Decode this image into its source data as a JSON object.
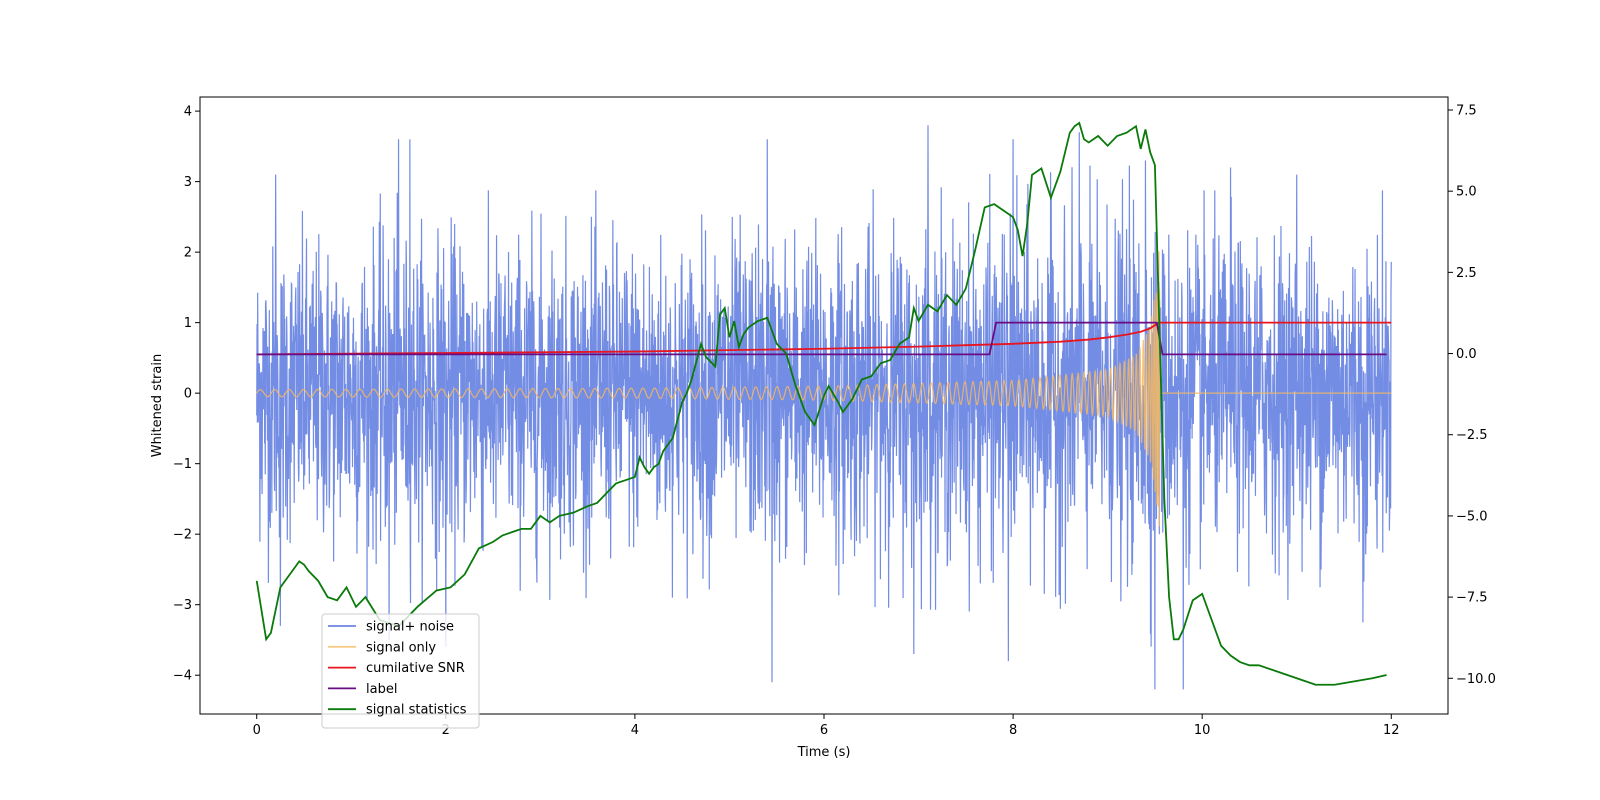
{
  "chart_data": {
    "type": "line",
    "title": "",
    "xlabel": "Time (s)",
    "ylabel": "Whitened strain",
    "y2label": "",
    "xlim": [
      -0.6,
      12.6
    ],
    "ylim": [
      -4.55,
      4.2
    ],
    "y2lim": [
      -11.1,
      7.9
    ],
    "x_ticks": [
      0,
      2,
      4,
      6,
      8,
      10,
      12
    ],
    "x_tick_labels": [
      "0",
      "2",
      "4",
      "6",
      "8",
      "10",
      "12"
    ],
    "y_ticks": [
      -4,
      -3,
      -2,
      -1,
      0,
      1,
      2,
      3,
      4
    ],
    "y_tick_labels": [
      "−4",
      "−3",
      "−2",
      "−1",
      "0",
      "1",
      "2",
      "3",
      "4"
    ],
    "y2_ticks": [
      -10,
      -7.5,
      -5,
      -2.5,
      0,
      2.5,
      5,
      7.5
    ],
    "y2_tick_labels": [
      "−10.0",
      "−7.5",
      "−5.0",
      "−2.5",
      "0.0",
      "2.5",
      "5.0",
      "7.5"
    ],
    "legend_position": "lower-left",
    "series": [
      {
        "name": "signal+ noise",
        "color": "#6b86e3",
        "axis": "left",
        "style": "noise",
        "x_range": [
          0,
          12
        ],
        "envelope_x": [
          0,
          2,
          4,
          6,
          8,
          9,
          9.5,
          9.55,
          9.6,
          12
        ],
        "envelope_upper": [
          2.2,
          2.3,
          2.3,
          2.4,
          2.5,
          2.6,
          2.8,
          2.4,
          2.3,
          2.3
        ],
        "envelope_lower": [
          -2.3,
          -2.4,
          -2.3,
          -2.4,
          -2.5,
          -2.6,
          -2.9,
          -2.5,
          -2.4,
          -2.3
        ],
        "peaks_high": [
          [
            0.2,
            3.1
          ],
          [
            1.5,
            3.6
          ],
          [
            1.62,
            3.6
          ],
          [
            5.4,
            3.6
          ],
          [
            7.1,
            3.8
          ],
          [
            8.7,
            3.7
          ],
          [
            8.0,
            3.6
          ],
          [
            9.4,
            3.3
          ],
          [
            10.3,
            3.2
          ],
          [
            11.0,
            3.1
          ]
        ],
        "peaks_low": [
          [
            0.25,
            -3.3
          ],
          [
            1.4,
            -3.5
          ],
          [
            2.0,
            -3.6
          ],
          [
            5.45,
            -4.1
          ],
          [
            6.95,
            -3.7
          ],
          [
            7.95,
            -3.8
          ],
          [
            9.5,
            -4.2
          ],
          [
            9.8,
            -4.2
          ],
          [
            11.7,
            -3.25
          ]
        ]
      },
      {
        "name": "signal only",
        "color": "#f5b961",
        "axis": "left",
        "style": "chirp",
        "x_range": [
          0,
          12
        ],
        "merger_time": 9.55,
        "amp_x": [
          0,
          4,
          6,
          8,
          9,
          9.3,
          9.45,
          9.52,
          9.55
        ],
        "amp_values": [
          0.05,
          0.07,
          0.1,
          0.18,
          0.33,
          0.55,
          0.95,
          1.6,
          2.2
        ],
        "post_merger_value": 0.0
      },
      {
        "name": "cumilative SNR",
        "color": "#e8141e",
        "axis": "left",
        "x": [
          0,
          2,
          4,
          5,
          6,
          7,
          7.5,
          8,
          8.5,
          8.8,
          9.0,
          9.2,
          9.35,
          9.45,
          9.52,
          9.55,
          9.57,
          12
        ],
        "values": [
          0.55,
          0.57,
          0.59,
          0.61,
          0.63,
          0.66,
          0.68,
          0.7,
          0.73,
          0.76,
          0.79,
          0.83,
          0.87,
          0.92,
          0.98,
          1.0,
          1.0,
          1.0
        ]
      },
      {
        "name": "label",
        "color": "#6a0d85",
        "axis": "left",
        "x": [
          0,
          7.75,
          7.82,
          9.52,
          9.58,
          11.95
        ],
        "values": [
          0.55,
          0.55,
          1.0,
          1.0,
          0.55,
          0.55
        ]
      },
      {
        "name": "signal statistics",
        "color": "#0a7a0a",
        "axis": "right",
        "x": [
          0,
          0.1,
          0.15,
          0.25,
          0.35,
          0.45,
          0.5,
          0.55,
          0.65,
          0.75,
          0.85,
          0.95,
          1.05,
          1.15,
          1.3,
          1.5,
          1.7,
          1.9,
          2.05,
          2.2,
          2.35,
          2.5,
          2.6,
          2.7,
          2.8,
          2.9,
          3.0,
          3.1,
          3.2,
          3.35,
          3.5,
          3.6,
          3.7,
          3.8,
          3.9,
          4.0,
          4.05,
          4.1,
          4.15,
          4.2,
          4.25,
          4.3,
          4.35,
          4.4,
          4.5,
          4.55,
          4.6,
          4.7,
          4.75,
          4.85,
          4.9,
          4.95,
          5.0,
          5.05,
          5.1,
          5.15,
          5.2,
          5.3,
          5.4,
          5.5,
          5.6,
          5.7,
          5.8,
          5.9,
          6.0,
          6.05,
          6.15,
          6.2,
          6.3,
          6.4,
          6.5,
          6.6,
          6.7,
          6.8,
          6.9,
          6.95,
          7.0,
          7.1,
          7.2,
          7.3,
          7.4,
          7.5,
          7.6,
          7.7,
          7.8,
          7.9,
          8.0,
          8.05,
          8.1,
          8.15,
          8.2,
          8.3,
          8.4,
          8.5,
          8.55,
          8.6,
          8.65,
          8.7,
          8.75,
          8.8,
          8.9,
          9.0,
          9.1,
          9.2,
          9.3,
          9.35,
          9.4,
          9.45,
          9.5,
          9.55,
          9.6,
          9.65,
          9.7,
          9.75,
          9.8,
          9.9,
          10.0,
          10.1,
          10.2,
          10.3,
          10.4,
          10.5,
          10.6,
          10.8,
          11.0,
          11.2,
          11.4,
          11.6,
          11.8,
          11.95
        ],
        "values": [
          -7.0,
          -8.8,
          -8.6,
          -7.2,
          -6.8,
          -6.4,
          -6.5,
          -6.7,
          -7.0,
          -7.5,
          -7.6,
          -7.2,
          -7.8,
          -7.5,
          -8.2,
          -8.4,
          -7.8,
          -7.3,
          -7.2,
          -6.8,
          -6.0,
          -5.8,
          -5.6,
          -5.5,
          -5.4,
          -5.4,
          -5.0,
          -5.2,
          -5.0,
          -4.9,
          -4.7,
          -4.6,
          -4.3,
          -4.0,
          -3.9,
          -3.8,
          -3.2,
          -3.5,
          -3.7,
          -3.5,
          -3.4,
          -3.0,
          -2.8,
          -2.6,
          -1.5,
          -1.2,
          -0.8,
          0.3,
          -0.1,
          -0.4,
          1.2,
          1.4,
          0.5,
          1.0,
          0.2,
          0.6,
          0.8,
          1.0,
          1.1,
          0.3,
          0.0,
          -1.0,
          -1.8,
          -2.2,
          -1.3,
          -1.0,
          -1.5,
          -1.8,
          -1.4,
          -0.8,
          -0.7,
          -0.3,
          -0.2,
          0.3,
          0.5,
          1.4,
          1.0,
          1.5,
          1.3,
          1.8,
          1.5,
          2.0,
          3.2,
          4.5,
          4.6,
          4.4,
          4.2,
          3.8,
          3.0,
          4.0,
          5.5,
          5.7,
          4.8,
          5.6,
          6.2,
          6.8,
          7.0,
          7.1,
          6.6,
          6.5,
          6.7,
          6.4,
          6.7,
          6.8,
          7.0,
          6.3,
          6.9,
          6.2,
          5.8,
          0.5,
          -4.5,
          -7.5,
          -8.8,
          -8.8,
          -8.5,
          -7.6,
          -7.4,
          -8.2,
          -9.0,
          -9.3,
          -9.5,
          -9.6,
          -9.6,
          -9.8,
          -10.0,
          -10.2,
          -10.2,
          -10.1,
          -10.0,
          -9.9
        ]
      }
    ]
  }
}
